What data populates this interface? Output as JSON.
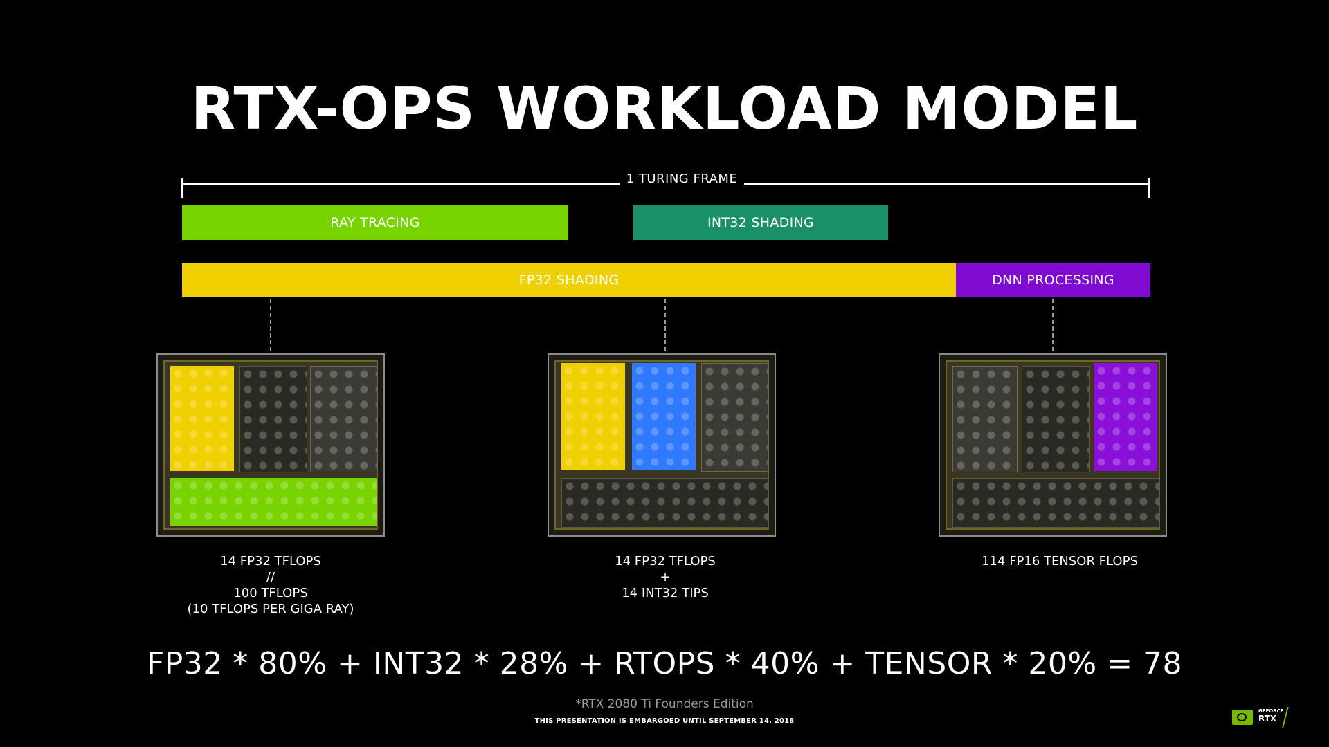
{
  "title": "RTX-OPS WORKLOAD MODEL",
  "frame_label": "1 TURING FRAME",
  "blocks": {
    "ray_tracing": {
      "label": "RAY TRACING",
      "color": "#78d400"
    },
    "int32_shading": {
      "label": "INT32 SHADING",
      "color": "#1a9068"
    },
    "fp32_shading": {
      "label": "FP32 SHADING",
      "color": "#f0d000"
    },
    "dnn_processing": {
      "label": "DNN PROCESSING",
      "color": "#7f0ad0"
    }
  },
  "dies": [
    {
      "caption": [
        "14 FP32 TFLOPS",
        "//",
        "100 TFLOPS",
        "(10 TFLOPS PER GIGA RAY)"
      ],
      "highlights": [
        "yellow",
        "green"
      ]
    },
    {
      "caption": [
        "14 FP32 TFLOPS",
        "+",
        "14 INT32 TIPS"
      ],
      "highlights": [
        "yellow",
        "blue"
      ]
    },
    {
      "caption": [
        "114 FP16 TENSOR FLOPS"
      ],
      "highlights": [
        "purple"
      ]
    }
  ],
  "formula": "FP32 * 80% + INT32 * 28% + RTOPS * 40% + TENSOR * 20% = 78",
  "footnote": "*RTX 2080 Ti Founders Edition",
  "embargo": "THIS PRESENTATION IS EMBARGOED UNTIL SEPTEMBER 14, 2018",
  "brand": {
    "badge_top": "GEFORCE",
    "badge_bottom": "RTX",
    "accent": "#76b900"
  }
}
